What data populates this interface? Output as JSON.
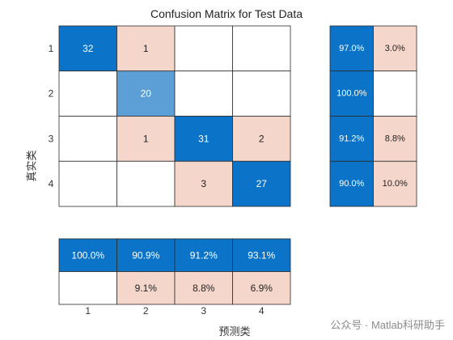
{
  "chart_data": {
    "type": "heatmap",
    "title": "Confusion Matrix for Test Data",
    "xlabel": "预测类",
    "ylabel": "真实类",
    "classes": [
      "1",
      "2",
      "3",
      "4"
    ],
    "matrix": [
      [
        32,
        1,
        null,
        null
      ],
      [
        null,
        20,
        null,
        null
      ],
      [
        null,
        1,
        31,
        2
      ],
      [
        null,
        null,
        3,
        27
      ]
    ],
    "row_summary": [
      {
        "correct": "97.0%",
        "incorrect": "3.0%"
      },
      {
        "correct": "100.0%",
        "incorrect": ""
      },
      {
        "correct": "91.2%",
        "incorrect": "8.8%"
      },
      {
        "correct": "90.0%",
        "incorrect": "10.0%"
      }
    ],
    "column_summary": [
      {
        "correct": "100.0%",
        "incorrect": ""
      },
      {
        "correct": "90.9%",
        "incorrect": "9.1%"
      },
      {
        "correct": "91.2%",
        "incorrect": "8.8%"
      },
      {
        "correct": "93.1%",
        "incorrect": "6.9%"
      }
    ],
    "colors": {
      "diagonal_dark": "#0b74c9",
      "diagonal_light": "#5b9fd6",
      "off_diagonal": "#f4d6cb",
      "empty": "#ffffff",
      "text_dark": "#222222",
      "text_light": "#ffffff"
    }
  },
  "watermark": "公众号 · Matlab科研助手"
}
